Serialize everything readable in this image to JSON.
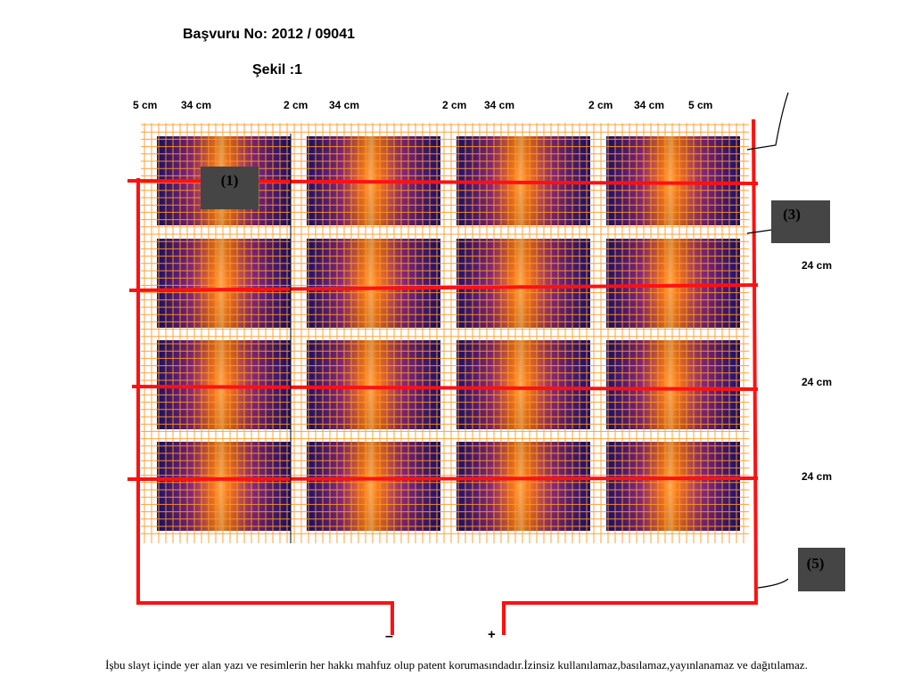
{
  "header": {
    "application_no": "Başvuru No: 2012 / 09041",
    "figure_title": "Şekil :1"
  },
  "width_dimensions": [
    "5 cm",
    "34 cm",
    "2 cm",
    "34 cm",
    "2 cm",
    "34 cm",
    "2 cm",
    "34 cm",
    "5 cm"
  ],
  "height_dimensions": [
    "24 cm",
    "24 cm",
    "24 cm"
  ],
  "labels": {
    "part1": "(1)",
    "part3": "(3)",
    "part5": "(5)"
  },
  "terminals": {
    "negative": "–",
    "positive": "+"
  },
  "panel_grid": {
    "rows": 4,
    "columns": 4
  },
  "colors": {
    "wire": "#ff1111",
    "grid_line": "#ff9a2a",
    "panel_dark": "#1c1070",
    "panel_light": "#ff7a1a",
    "label_box": "#454545"
  },
  "footer": "İşbu slayt içinde yer alan yazı ve resimlerin  her  hakkı mahfuz olup patent korumasındadır.İzinsiz kullanılamaz,basılamaz,yayınlanamaz ve dağıtılamaz."
}
